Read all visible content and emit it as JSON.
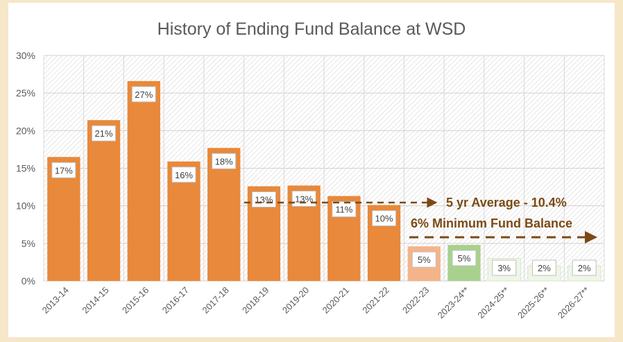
{
  "chart_data": {
    "type": "bar",
    "title": "History of Ending Fund Balance at WSD",
    "xlabel": "",
    "ylabel": "",
    "ylim": [
      0,
      30
    ],
    "yticks": [
      "0%",
      "5%",
      "10%",
      "15%",
      "20%",
      "25%",
      "30%"
    ],
    "grid": true,
    "categories": [
      "2013-14",
      "2014-15",
      "2015-16",
      "2016-17",
      "2017-18",
      "2018-19",
      "2019-20",
      "2020-21",
      "2021-22",
      "2022-23",
      "2023-24**",
      "2024-25**",
      "2025-26**",
      "2026-27**"
    ],
    "values": [
      16.5,
      21.4,
      26.6,
      15.9,
      17.7,
      12.6,
      12.7,
      11.3,
      10.1,
      4.6,
      4.8,
      3,
      2,
      2
    ],
    "data_labels": [
      "17%",
      "21%",
      "27%",
      "16%",
      "18%",
      "13%",
      "13%",
      "11%",
      "10%",
      "5%",
      "5%",
      "3%",
      "2%",
      "2%"
    ],
    "bar_colors": [
      "#e8893b",
      "#e8893b",
      "#e8893b",
      "#e8893b",
      "#e8893b",
      "#e8893b",
      "#e8893b",
      "#e8893b",
      "#e8893b",
      "#f4b48a",
      "#a9d18e",
      "#eef6e8",
      "#eef6e8",
      "#eef6e8"
    ],
    "annotations": [
      {
        "text": "5 yr Average - 10.4%",
        "value": 10.4,
        "color": "#7b4a14"
      },
      {
        "text": "6% Minimum Fund Balance",
        "value": 6,
        "color": "#7b4a14"
      }
    ]
  }
}
